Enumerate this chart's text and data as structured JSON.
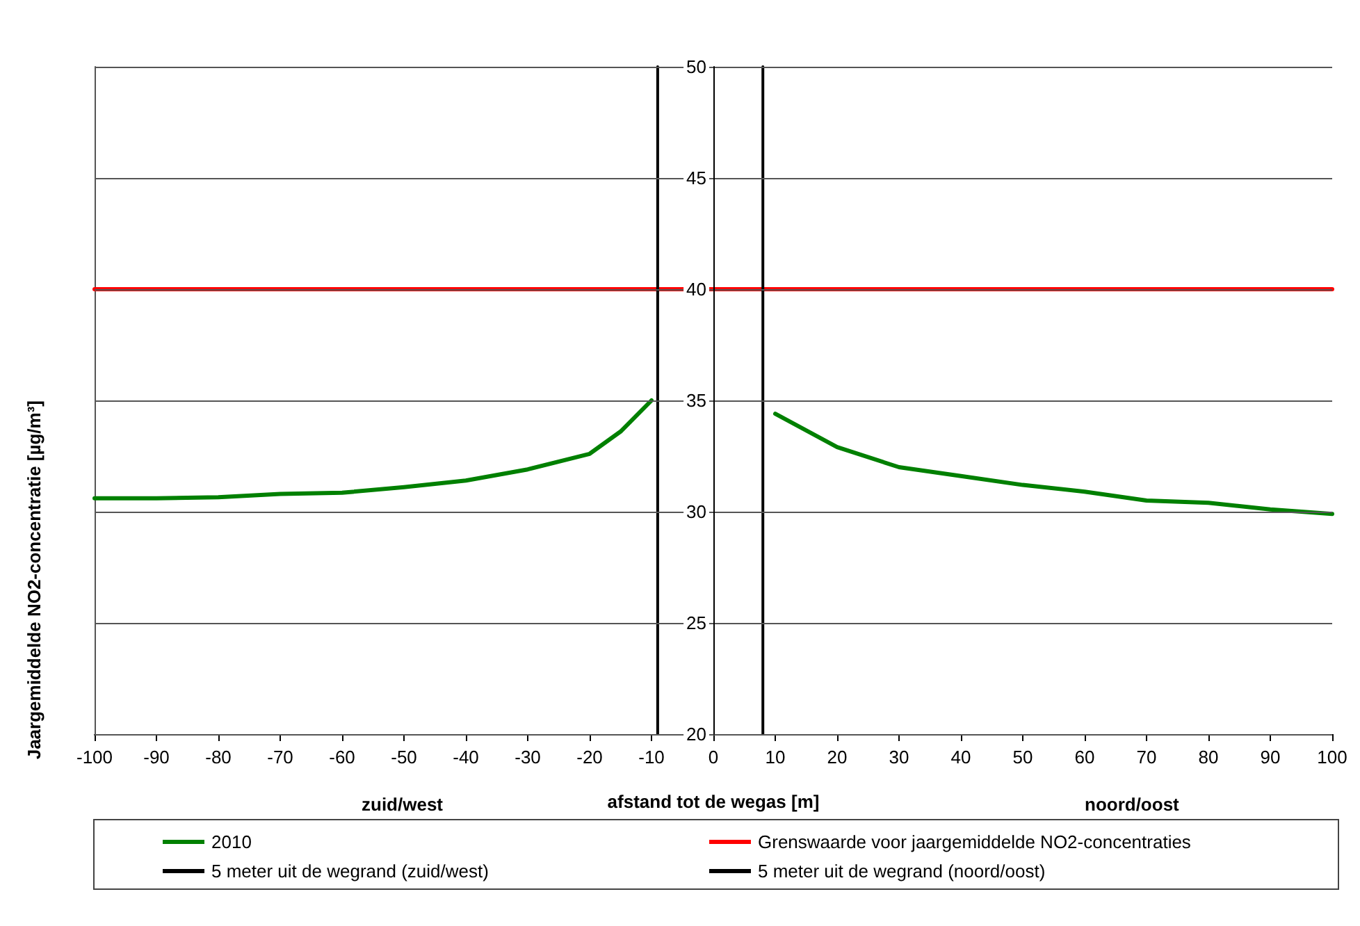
{
  "chart_data": {
    "type": "line",
    "xlabel": "afstand tot de wegas [m]",
    "ylabel": "Jaargemiddelde NO2-concentratie [µg/m³]",
    "annotations": [
      "zuid/west",
      "noord/oost"
    ],
    "x": [
      -100,
      -90,
      -80,
      -70,
      -60,
      -50,
      -40,
      -30,
      -20,
      -15,
      -10,
      0,
      10,
      20,
      30,
      40,
      50,
      60,
      70,
      80,
      90,
      100
    ],
    "series": [
      {
        "name": "2010",
        "color": "#008000",
        "values": [
          30.6,
          30.6,
          30.65,
          30.8,
          30.85,
          31.1,
          31.4,
          31.9,
          32.6,
          33.6,
          35.0,
          null,
          34.4,
          32.9,
          32.0,
          31.6,
          31.2,
          30.9,
          30.5,
          30.4,
          30.1,
          29.9
        ]
      },
      {
        "name": "Grenswaarde voor jaargemiddelde NO2-concentraties",
        "color": "#ff0000",
        "x": [
          -100,
          100
        ],
        "values": [
          40,
          40
        ]
      },
      {
        "name": "5 meter uit de wegrand (zuid/west)",
        "color": "#000000",
        "x": [
          -9,
          -9
        ],
        "values": [
          20,
          50
        ]
      },
      {
        "name": "5 meter uit de wegrand (noord/oost)",
        "color": "#000000",
        "x": [
          8,
          8
        ],
        "values": [
          20,
          50
        ]
      }
    ],
    "xlim": [
      -100,
      100
    ],
    "xticks": [
      -100,
      -90,
      -80,
      -70,
      -60,
      -50,
      -40,
      -30,
      -20,
      -10,
      0,
      10,
      20,
      30,
      40,
      50,
      60,
      70,
      80,
      90,
      100
    ],
    "ylim": [
      20,
      50
    ],
    "yticks": [
      20,
      25,
      30,
      35,
      40,
      45,
      50
    ],
    "grid": "y",
    "legend": "bottom",
    "marker": "none",
    "line_style": "solid"
  }
}
